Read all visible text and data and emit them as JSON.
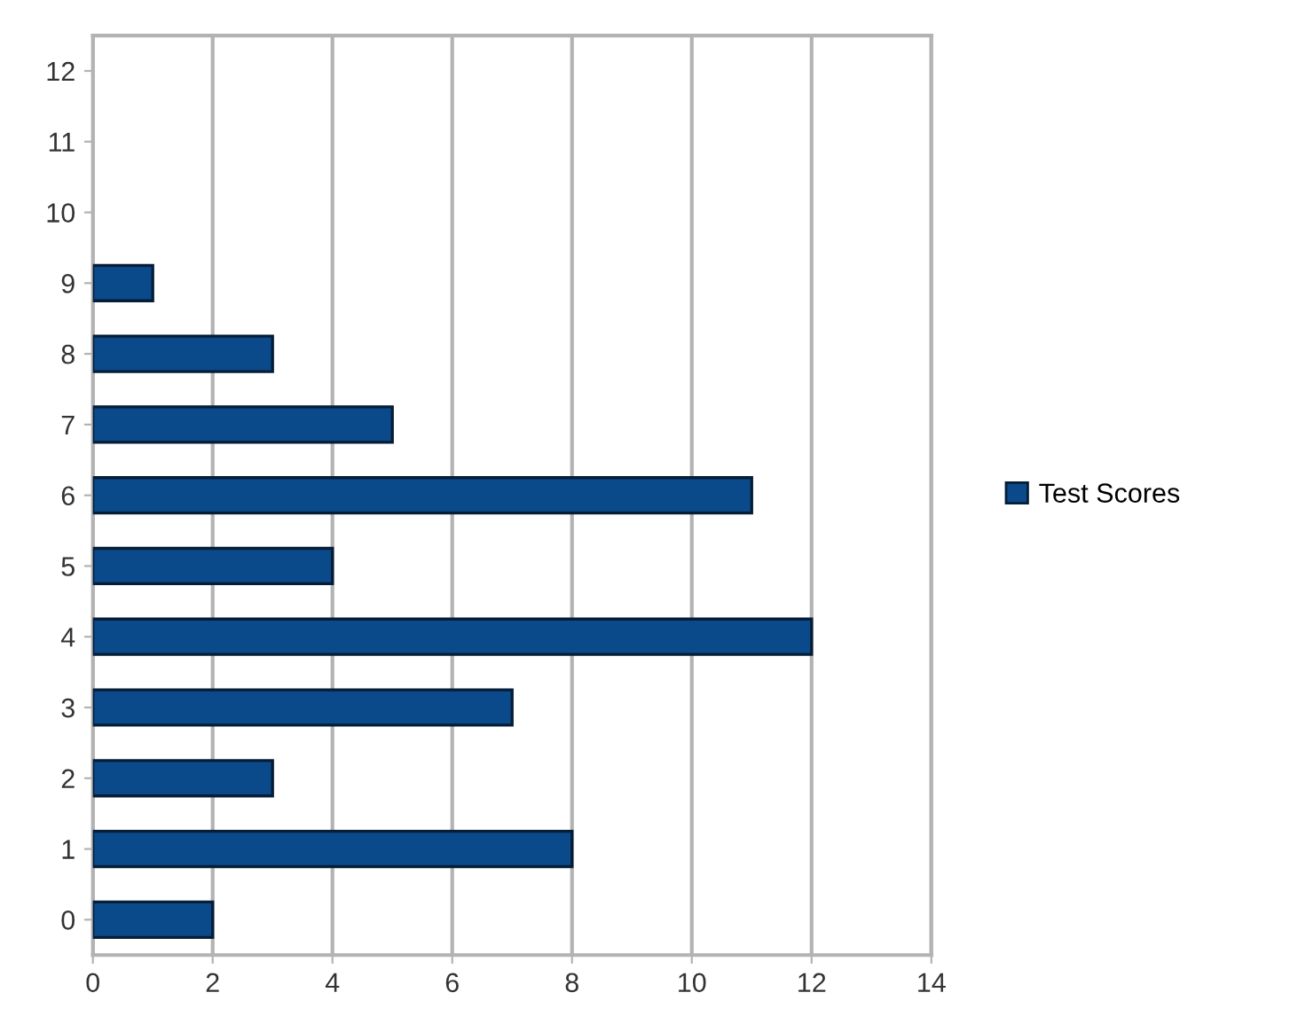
{
  "chart_data": {
    "type": "bar",
    "orientation": "horizontal",
    "categories": [
      "12",
      "11",
      "10",
      "9",
      "8",
      "7",
      "6",
      "5",
      "4",
      "3",
      "2",
      "1",
      "0"
    ],
    "series": [
      {
        "name": "Test Scores",
        "color": "#0b4a8a",
        "values": [
          null,
          null,
          null,
          1,
          3,
          5,
          11,
          4,
          12,
          7,
          3,
          8,
          2
        ]
      }
    ],
    "xlim": [
      0,
      14
    ],
    "xticks": [
      0,
      2,
      4,
      6,
      8,
      10,
      12,
      14
    ],
    "grid": "x",
    "legend": "right"
  }
}
